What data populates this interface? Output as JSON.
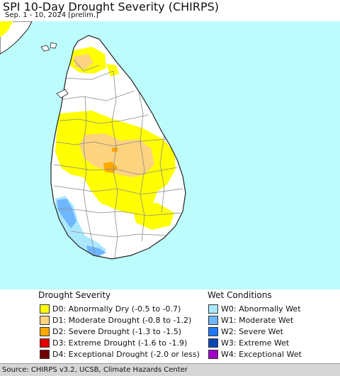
{
  "title": "SPI 10-Day Drought Severity (CHIRPS)",
  "subtitle": "Sep. 1 - 10, 2024 [prelim.]",
  "colors": {
    "ocean": "#bdfcfd",
    "land": "#ffffff",
    "boundary": "#8a8a8a",
    "coast": "#222222"
  },
  "legend": {
    "drought": {
      "heading": "Drought Severity",
      "items": [
        {
          "label": "D0: Abnormally Dry (-0.5 to -0.7)",
          "color": "#ffff00"
        },
        {
          "label": "D1: Moderate Drought (-0.8 to -1.2)",
          "color": "#fcd37f"
        },
        {
          "label": "D2: Severe Drought (-1.3 to -1.5)",
          "color": "#ffaa00"
        },
        {
          "label": "D3: Extreme Drought (-1.6 to -1.9)",
          "color": "#e60000"
        },
        {
          "label": "D4: Exceptional Drought (-2.0 or less)",
          "color": "#730000"
        }
      ]
    },
    "wet": {
      "heading": "Wet Conditions",
      "items": [
        {
          "label": "W0: Abnormally Wet",
          "color": "#aae8ff"
        },
        {
          "label": "W1: Moderate Wet",
          "color": "#6fb6ff"
        },
        {
          "label": "W2: Severe Wet",
          "color": "#1e78ff"
        },
        {
          "label": "W3: Extreme Wet",
          "color": "#0a46b4"
        },
        {
          "label": "W4: Exceptional Wet",
          "color": "#a000c8"
        }
      ]
    }
  },
  "source": "Source: CHIRPS v3.2, UCSB, Climate Hazards Center"
}
